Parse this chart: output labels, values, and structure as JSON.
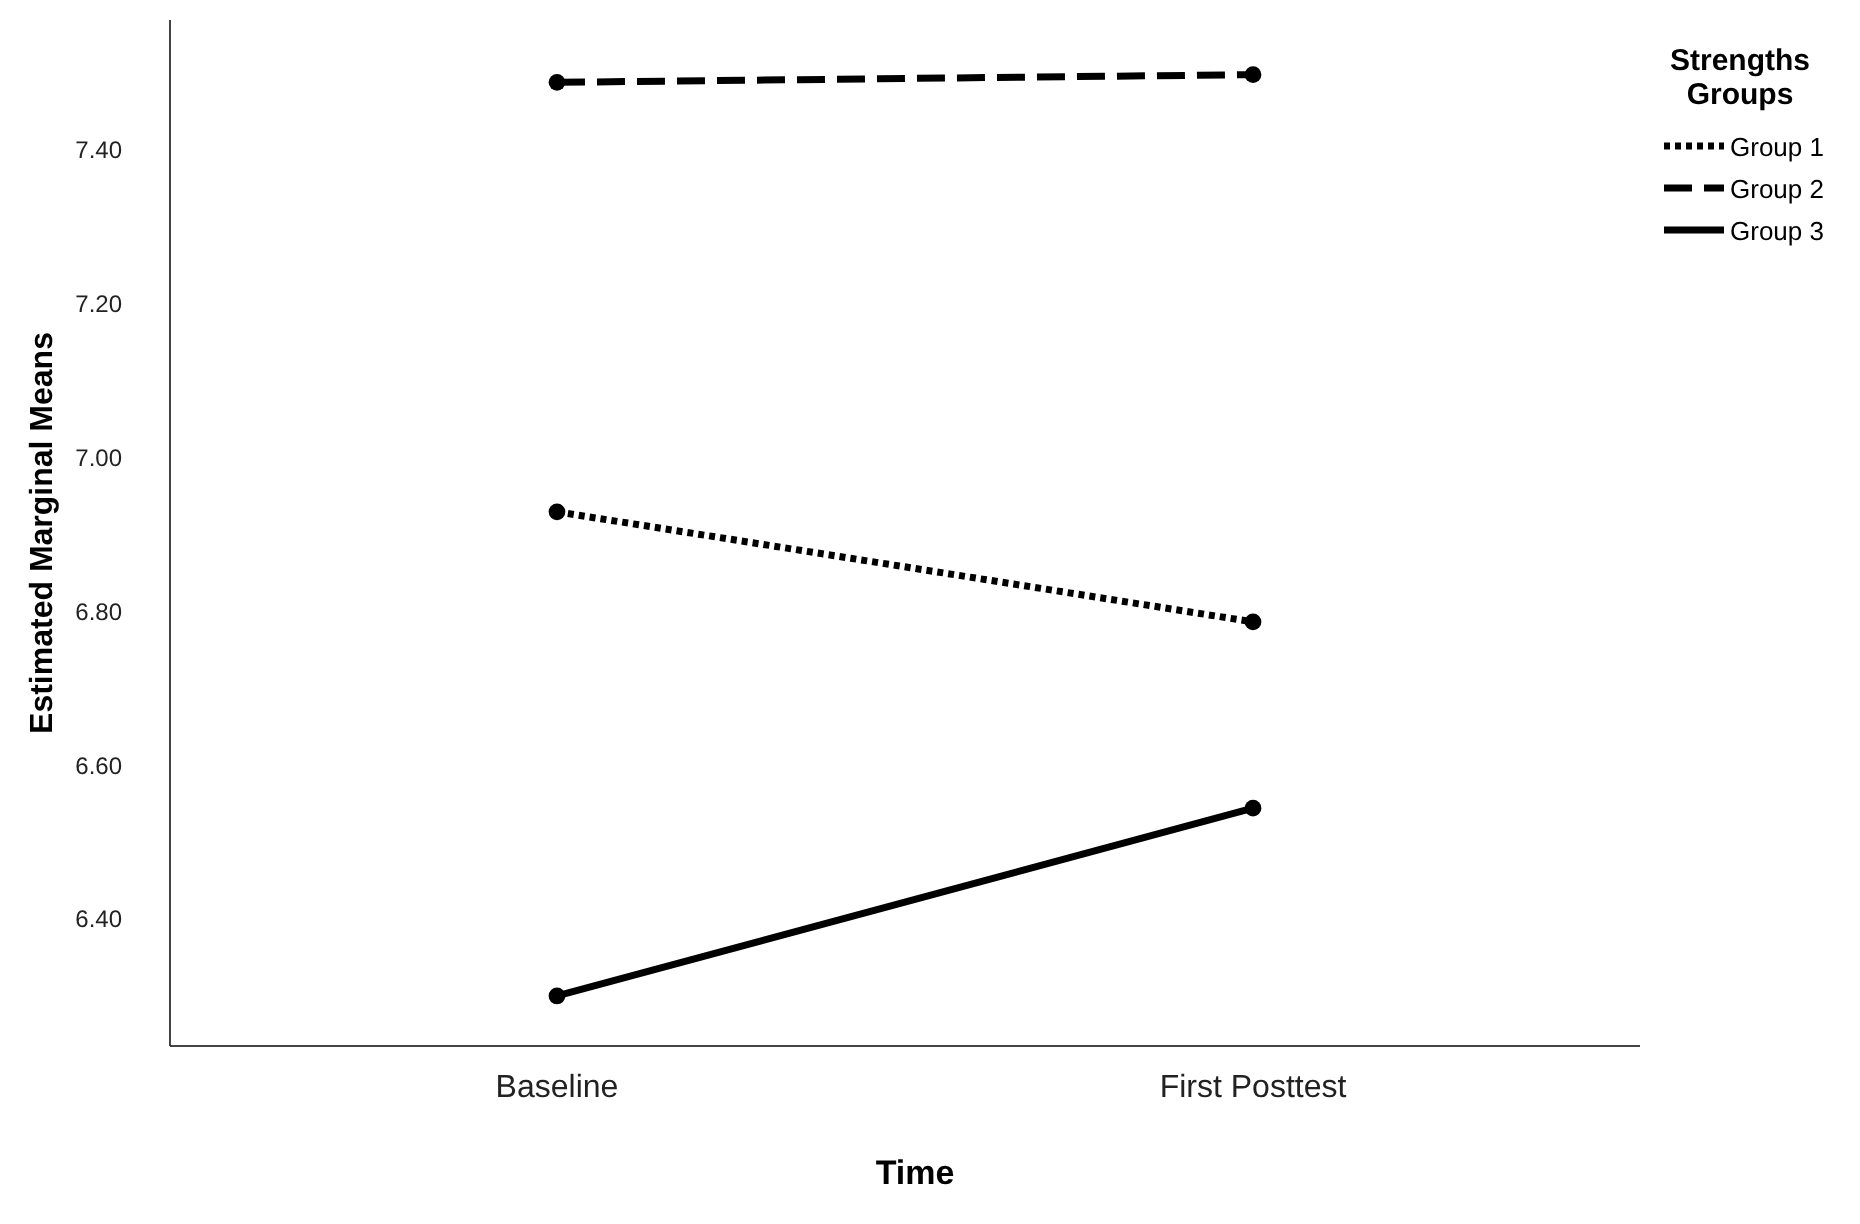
{
  "chart_data": {
    "type": "line",
    "xlabel": "Time",
    "ylabel": "Estimated Marginal Means",
    "legend_title": "Strengths Groups",
    "categories": [
      "Baseline",
      "First Posttest"
    ],
    "series": [
      {
        "name": "Group 1",
        "color": "#000000",
        "values": [
          6.93,
          6.787
        ],
        "line_style": "dotted"
      },
      {
        "name": "Group 2",
        "color": "#000000",
        "values": [
          7.488,
          7.498
        ],
        "line_style": "dashed"
      },
      {
        "name": "Group 3",
        "color": "#000000",
        "values": [
          6.301,
          6.545
        ],
        "line_style": "solid"
      }
    ],
    "ylim": [
      6.236,
      7.569
    ],
    "yticks": [
      {
        "value": 6.4,
        "label": "6.40"
      },
      {
        "value": 6.6,
        "label": "6.60"
      },
      {
        "value": 6.8,
        "label": "6.80"
      },
      {
        "value": 7.0,
        "label": "7.00"
      },
      {
        "value": 7.2,
        "label": "7.20"
      },
      {
        "value": 7.4,
        "label": "7.40"
      }
    ],
    "marker": "circle",
    "legend": "top right",
    "grid": false
  }
}
